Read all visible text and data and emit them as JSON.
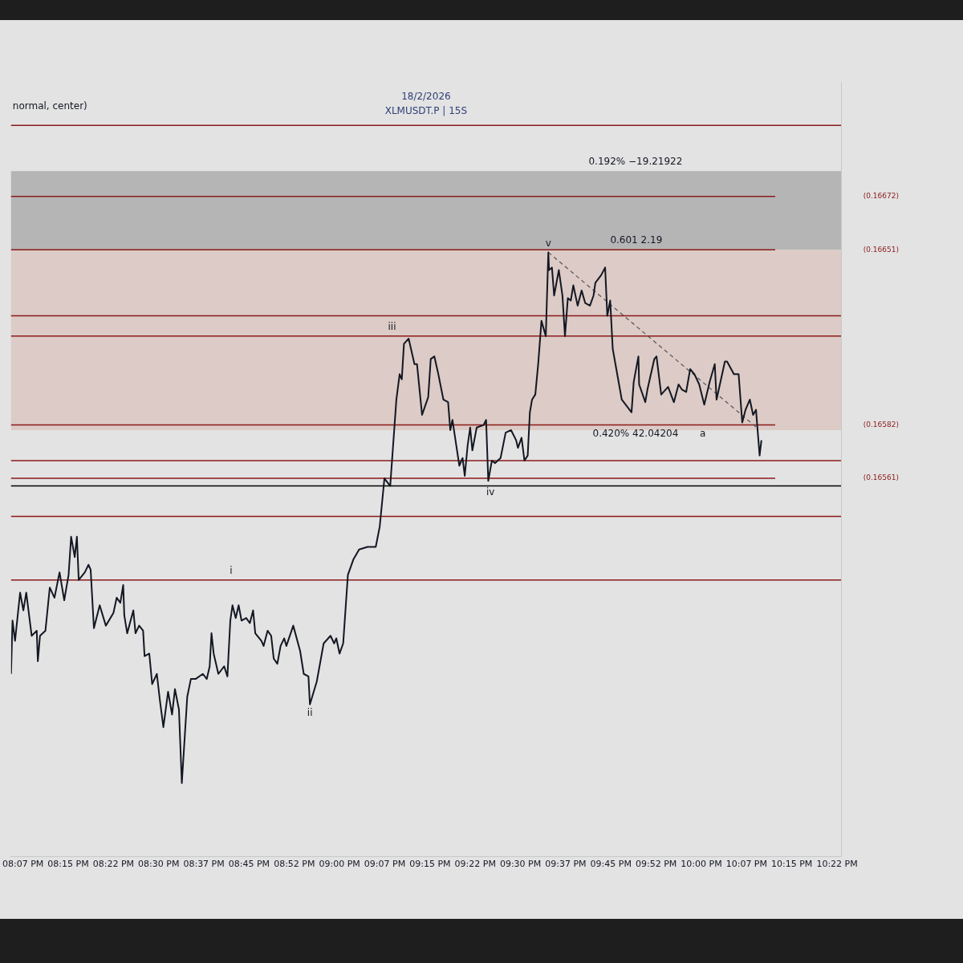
{
  "chart_data": {
    "type": "line",
    "title": "18/2/2026",
    "subtitle": "XLMUSDT.P | 15S",
    "xlim": [
      20.092,
      22.386
    ],
    "ylim": [
      0.16412,
      0.16717
    ],
    "yticks": [
      {
        "value": 0.16672,
        "label": "(0.16672)"
      },
      {
        "value": 0.16651,
        "label": "(0.16651)"
      },
      {
        "value": 0.16582,
        "label": "(0.16582)"
      },
      {
        "value": 0.16561,
        "label": "(0.16561)"
      }
    ],
    "xticks": [
      {
        "value": 20.125,
        "label": "08:07 PM"
      },
      {
        "value": 20.25,
        "label": "08:15 PM"
      },
      {
        "value": 20.375,
        "label": "08:22 PM"
      },
      {
        "value": 20.5,
        "label": "08:30 PM"
      },
      {
        "value": 20.625,
        "label": "08:37 PM"
      },
      {
        "value": 20.75,
        "label": "08:45 PM"
      },
      {
        "value": 20.875,
        "label": "08:52 PM"
      },
      {
        "value": 21,
        "label": "09:00 PM"
      },
      {
        "value": 21.125,
        "label": "09:07 PM"
      },
      {
        "value": 21.25,
        "label": "09:15 PM"
      },
      {
        "value": 21.375,
        "label": "09:22 PM"
      },
      {
        "value": 21.5,
        "label": "09:30 PM"
      },
      {
        "value": 21.625,
        "label": "09:37 PM"
      },
      {
        "value": 21.75,
        "label": "09:45 PM"
      },
      {
        "value": 21.875,
        "label": "09:52 PM"
      },
      {
        "value": 22,
        "label": "10:00 PM"
      },
      {
        "value": 22.125,
        "label": "10:07 PM"
      },
      {
        "value": 22.25,
        "label": "10:15 PM"
      },
      {
        "value": 22.375,
        "label": "10:22 PM"
      }
    ],
    "grid": false,
    "legend": false,
    "series": [
      {
        "type": "line",
        "color": "#131722",
        "x": [
          20.092,
          20.096,
          20.103,
          20.117,
          20.126,
          20.134,
          20.149,
          20.163,
          20.166,
          20.172,
          20.187,
          20.199,
          20.212,
          20.226,
          20.239,
          20.251,
          20.258,
          20.268,
          20.274,
          20.279,
          20.296,
          20.306,
          20.312,
          20.321,
          20.337,
          20.354,
          20.375,
          20.384,
          20.394,
          20.402,
          20.405,
          20.413,
          20.43,
          20.436,
          20.446,
          20.457,
          20.461,
          20.474,
          20.482,
          20.495,
          20.503,
          20.513,
          20.526,
          20.537,
          20.545,
          20.556,
          20.564,
          20.579,
          20.589,
          20.602,
          20.622,
          20.633,
          20.641,
          20.646,
          20.652,
          20.665,
          20.681,
          20.69,
          20.698,
          20.704,
          20.713,
          20.721,
          20.729,
          20.742,
          20.752,
          20.761,
          20.767,
          20.784,
          20.79,
          20.801,
          20.811,
          20.818,
          20.828,
          20.837,
          20.847,
          20.853,
          20.872,
          20.891,
          20.901,
          20.914,
          20.918,
          20.937,
          20.956,
          20.975,
          20.985,
          20.991,
          21.0,
          21.01,
          21.023,
          21.038,
          21.054,
          21.077,
          21.1,
          21.111,
          21.124,
          21.14,
          21.157,
          21.166,
          21.172,
          21.178,
          21.191,
          21.207,
          21.214,
          21.228,
          21.245,
          21.252,
          21.262,
          21.273,
          21.287,
          21.3,
          21.306,
          21.312,
          21.331,
          21.34,
          21.346,
          21.354,
          21.361,
          21.367,
          21.379,
          21.398,
          21.405,
          21.411,
          21.421,
          21.43,
          21.445,
          21.459,
          21.474,
          21.488,
          21.493,
          21.503,
          21.511,
          21.52,
          21.526,
          21.532,
          21.541,
          21.549,
          21.558,
          21.57,
          21.577,
          21.579,
          21.587,
          21.593,
          21.606,
          21.616,
          21.623,
          21.631,
          21.639,
          21.646,
          21.658,
          21.669,
          21.679,
          21.692,
          21.702,
          21.707,
          21.723,
          21.734,
          21.74,
          21.748,
          21.755,
          21.765,
          21.78,
          21.807,
          21.813,
          21.826,
          21.828,
          21.845,
          21.851,
          21.87,
          21.876,
          21.889,
          21.908,
          21.924,
          21.937,
          21.946,
          21.958,
          21.969,
          21.981,
          21.994,
          22.008,
          22.023,
          22.037,
          22.042,
          22.065,
          22.071,
          22.09,
          22.103,
          22.113,
          22.122,
          22.134,
          22.143,
          22.151,
          22.161,
          22.166
        ],
        "values": [
          0.16484,
          0.16505,
          0.16497,
          0.16516,
          0.16509,
          0.16516,
          0.16499,
          0.16501,
          0.16489,
          0.16499,
          0.16501,
          0.16518,
          0.16514,
          0.16524,
          0.16513,
          0.16523,
          0.16538,
          0.1653,
          0.16538,
          0.16521,
          0.16524,
          0.16527,
          0.16525,
          0.16502,
          0.16511,
          0.16503,
          0.16508,
          0.16514,
          0.16512,
          0.16519,
          0.16507,
          0.165,
          0.16509,
          0.165,
          0.16503,
          0.16501,
          0.16491,
          0.16492,
          0.1648,
          0.16484,
          0.16474,
          0.16463,
          0.16477,
          0.16468,
          0.16478,
          0.1647,
          0.16441,
          0.16475,
          0.16482,
          0.16482,
          0.16484,
          0.16482,
          0.16487,
          0.165,
          0.16492,
          0.16484,
          0.16487,
          0.16483,
          0.16505,
          0.16511,
          0.16506,
          0.16511,
          0.16505,
          0.16506,
          0.16504,
          0.16509,
          0.165,
          0.16497,
          0.16495,
          0.16501,
          0.16499,
          0.1649,
          0.16488,
          0.16495,
          0.16498,
          0.16495,
          0.16503,
          0.16493,
          0.16484,
          0.16483,
          0.16472,
          0.16481,
          0.16496,
          0.16499,
          0.16496,
          0.16498,
          0.16492,
          0.16496,
          0.16523,
          0.16529,
          0.16533,
          0.16534,
          0.16534,
          0.16542,
          0.16561,
          0.16558,
          0.16592,
          0.16602,
          0.166,
          0.16614,
          0.16616,
          0.16606,
          0.16606,
          0.16586,
          0.16593,
          0.16608,
          0.16609,
          0.16602,
          0.16592,
          0.16591,
          0.1658,
          0.16584,
          0.16566,
          0.16569,
          0.16562,
          0.16574,
          0.16581,
          0.16572,
          0.16581,
          0.16582,
          0.16584,
          0.1656,
          0.16568,
          0.16567,
          0.16569,
          0.16579,
          0.1658,
          0.16576,
          0.16573,
          0.16577,
          0.16568,
          0.1657,
          0.16587,
          0.16592,
          0.16594,
          0.16606,
          0.16623,
          0.16617,
          0.1665,
          0.16643,
          0.16644,
          0.16633,
          0.16643,
          0.16633,
          0.16617,
          0.16632,
          0.16631,
          0.16637,
          0.16629,
          0.16635,
          0.1663,
          0.16629,
          0.16633,
          0.16638,
          0.16641,
          0.16644,
          0.16625,
          0.16631,
          0.16612,
          0.16604,
          0.16592,
          0.16587,
          0.16599,
          0.16609,
          0.16598,
          0.16591,
          0.16596,
          0.16608,
          0.16609,
          0.16594,
          0.16597,
          0.16591,
          0.16598,
          0.16596,
          0.16595,
          0.16604,
          0.16602,
          0.16598,
          0.1659,
          0.16599,
          0.16606,
          0.16592,
          0.16607,
          0.16607,
          0.16602,
          0.16602,
          0.16583,
          0.16588,
          0.16592,
          0.16586,
          0.16588,
          0.1657,
          0.16576
        ]
      },
      {
        "type": "line",
        "color": "#555555",
        "line_style": "dashed",
        "x": [
          21.577,
          22.153
        ],
        "values": [
          0.1665,
          0.16581
        ]
      }
    ],
    "bands": [
      {
        "axis": "y",
        "from": 0.16651,
        "to": 0.16682,
        "color": "#b5b5b5"
      },
      {
        "axis": "y",
        "from": 0.1658,
        "to": 0.16651,
        "color": "#dccbc6"
      }
    ],
    "ref_lines": [
      {
        "axis": "y",
        "value": 0.167,
        "label": null,
        "color": "#8b1a1a"
      },
      {
        "axis": "y",
        "value": 0.16672,
        "label": null,
        "color": "#8b1a1a"
      },
      {
        "axis": "y",
        "value": 0.16651,
        "label": null,
        "color": "#8b1a1a"
      },
      {
        "axis": "y",
        "value": 0.16625,
        "label": null,
        "color": "#8b1a1a"
      },
      {
        "axis": "y",
        "value": 0.16617,
        "label": null,
        "color": "#8b1a1a"
      },
      {
        "axis": "y",
        "value": 0.16582,
        "label": null,
        "color": "#8b1a1a"
      },
      {
        "axis": "y",
        "value": 0.16568,
        "label": null,
        "color": "#8b1a1a"
      },
      {
        "axis": "y",
        "value": 0.16561,
        "label": null,
        "color": "#8b1a1a"
      },
      {
        "axis": "y",
        "value": 0.16558,
        "label": null,
        "color": "#000000"
      },
      {
        "axis": "y",
        "value": 0.16546,
        "label": null,
        "color": "#8b1a1a"
      },
      {
        "axis": "y",
        "value": 0.16521,
        "label": null,
        "color": "#8b1a1a"
      }
    ],
    "annotations": [
      "normal, center)",
      {
        "text": "i",
        "x": 20.7,
        "y": 0.16521
      },
      {
        "text": "ii",
        "x": 20.918,
        "y": 0.16472
      },
      {
        "text": "iii",
        "x": 21.145,
        "y": 0.16617
      },
      {
        "text": "iv",
        "x": 21.417,
        "y": 0.16559
      },
      {
        "text": "v",
        "x": 21.577,
        "y": 0.1665
      },
      {
        "text": "a",
        "x": 22.004,
        "y": 0.16582
      },
      {
        "text": "0.192% −19.21922",
        "x": 21.818,
        "y": 0.16682
      },
      {
        "text": "0.601 2.19",
        "x": 21.82,
        "y": 0.16651
      },
      {
        "text": "0.420% 42.04204",
        "x": 21.818,
        "y": 0.16582
      }
    ]
  }
}
